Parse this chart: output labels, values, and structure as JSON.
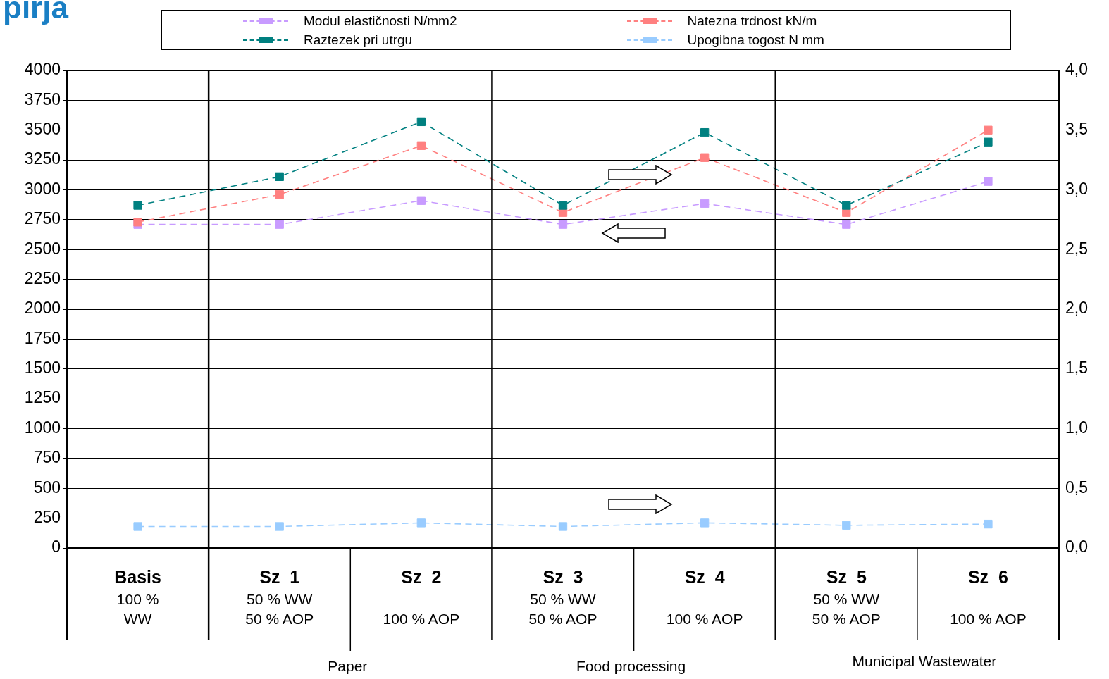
{
  "chart_data": {
    "type": "line",
    "title": "pirja",
    "categories": [
      "Basis\n100 %\nWW",
      "Sz_1\n50 % WW\n50 % AOP",
      "Sz_2\n100 % AOP",
      "Sz_3\n50 % WW\n50 % AOP",
      "Sz_4\n100 % AOP",
      "Sz_5\n50 % WW\n50 % AOP",
      "Sz_6\n100 % AOP"
    ],
    "series": [
      {
        "name": "Modul elastičnosti N/mm2",
        "color": "#c89bff",
        "values": [
          2710,
          2710,
          2910,
          2710,
          2885,
          2710,
          3070
        ]
      },
      {
        "name": "Natezna trdnost kN/m",
        "color": "#ff8080",
        "axis": "y2",
        "values": [
          2.73,
          2.96,
          3.37,
          2.81,
          3.27,
          2.81,
          3.5
        ]
      },
      {
        "name": "Raztezek pri utrgu",
        "color": "#008080",
        "axis": "y2",
        "values": [
          2.87,
          3.11,
          3.57,
          2.87,
          3.48,
          2.87,
          3.4
        ]
      },
      {
        "name": "Upogibna togost N mm",
        "color": "#99ccff",
        "axis": "y2",
        "values": [
          0.18,
          0.18,
          0.21,
          0.18,
          0.21,
          0.19,
          0.2
        ]
      }
    ],
    "ylim": [
      0,
      4000
    ],
    "yticks": [
      0,
      250,
      500,
      750,
      1000,
      1250,
      1500,
      1750,
      2000,
      2250,
      2500,
      2750,
      3000,
      3250,
      3500,
      3750,
      4000
    ],
    "y2lim": [
      0,
      4
    ],
    "y2ticks": [
      {
        "value": 0,
        "label": "0,0"
      },
      {
        "value": 0.5,
        "label": "0,5"
      },
      {
        "value": 1,
        "label": "1,0"
      },
      {
        "value": 1.5,
        "label": "1,5"
      },
      {
        "value": 2,
        "label": "2,0"
      },
      {
        "value": 2.5,
        "label": "2,5"
      },
      {
        "value": 3,
        "label": "3,0"
      },
      {
        "value": 3.5,
        "label": "3,5"
      },
      {
        "value": 4,
        "label": "4,0"
      }
    ],
    "annotations": [
      "Paper",
      "Food processing",
      "Municipal Wastewater"
    ],
    "grid": "y",
    "legend": "top",
    "marker": "square",
    "line_style": "dashed"
  }
}
